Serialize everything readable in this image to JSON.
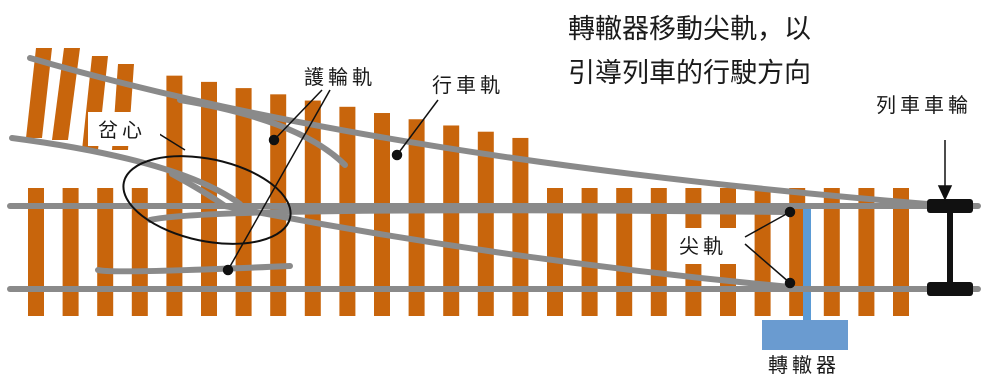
{
  "caption": {
    "line1": "轉轍器移動尖軌，以",
    "line2": "引導列車的行駛方向"
  },
  "labels": {
    "frog": "岔心",
    "guard_rail": "護輪軌",
    "running_rail": "行車軌",
    "wheelset": "列車車輪",
    "switch_rail": "尖軌",
    "switch_machine": "轉轍器"
  },
  "colors": {
    "tie": "#c8650c",
    "rail": "#8a8a8a",
    "switch_machine": "#6a9bd0",
    "switch_rod": "#5b9bd5",
    "wheelset": "#111111",
    "text": "#1a1a1a",
    "background": "#ffffff"
  }
}
